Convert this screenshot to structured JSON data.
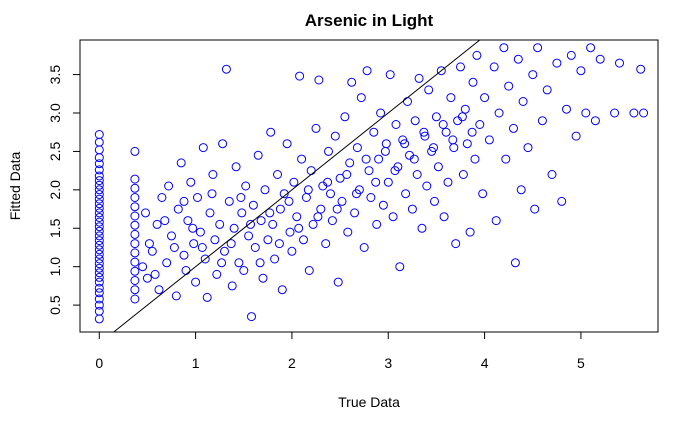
{
  "chart_data": {
    "type": "scatter",
    "title": "Arsenic in Light",
    "xlabel": "True Data",
    "ylabel": "Fitted Data",
    "xlim": [
      -0.2,
      5.8
    ],
    "ylim": [
      0.15,
      3.95
    ],
    "x_ticks": [
      0,
      1,
      2,
      3,
      4,
      5
    ],
    "y_ticks": [
      0.5,
      1.0,
      1.5,
      2.0,
      2.5,
      3.0,
      3.5
    ],
    "x_tick_labels": [
      "0",
      "1",
      "2",
      "3",
      "4",
      "5"
    ],
    "y_tick_labels": [
      "0.5",
      "1.0",
      "1.5",
      "2.0",
      "2.5",
      "3.0",
      "3.5"
    ],
    "grid": false,
    "marker": "open-circle",
    "point_color": "#0000ff",
    "reference_line": {
      "type": "identity",
      "slope": 1,
      "intercept": 0
    },
    "points": [
      [
        0,
        0.32
      ],
      [
        0,
        0.42
      ],
      [
        0,
        0.5
      ],
      [
        0,
        0.58
      ],
      [
        0,
        0.66
      ],
      [
        0,
        0.72
      ],
      [
        0,
        0.8
      ],
      [
        0,
        0.86
      ],
      [
        0,
        0.92
      ],
      [
        0,
        0.98
      ],
      [
        0,
        1.04
      ],
      [
        0,
        1.1
      ],
      [
        0,
        1.16
      ],
      [
        0,
        1.22
      ],
      [
        0,
        1.28
      ],
      [
        0,
        1.34
      ],
      [
        0,
        1.4
      ],
      [
        0,
        1.46
      ],
      [
        0,
        1.52
      ],
      [
        0,
        1.58
      ],
      [
        0,
        1.64
      ],
      [
        0,
        1.7
      ],
      [
        0,
        1.76
      ],
      [
        0,
        1.82
      ],
      [
        0,
        1.88
      ],
      [
        0,
        1.94
      ],
      [
        0,
        2.0
      ],
      [
        0,
        2.06
      ],
      [
        0,
        2.12
      ],
      [
        0,
        2.18
      ],
      [
        0,
        2.26
      ],
      [
        0,
        2.34
      ],
      [
        0,
        2.42
      ],
      [
        0,
        2.52
      ],
      [
        0,
        2.62
      ],
      [
        0,
        2.72
      ],
      [
        0.37,
        0.58
      ],
      [
        0.37,
        0.7
      ],
      [
        0.37,
        0.82
      ],
      [
        0.37,
        0.94
      ],
      [
        0.37,
        1.06
      ],
      [
        0.37,
        1.18
      ],
      [
        0.37,
        1.3
      ],
      [
        0.37,
        1.42
      ],
      [
        0.37,
        1.54
      ],
      [
        0.37,
        1.66
      ],
      [
        0.37,
        1.78
      ],
      [
        0.37,
        1.9
      ],
      [
        0.37,
        2.02
      ],
      [
        0.37,
        2.14
      ],
      [
        0.37,
        2.5
      ],
      [
        0.5,
        0.85
      ],
      [
        0.55,
        1.2
      ],
      [
        0.6,
        1.55
      ],
      [
        0.62,
        0.7
      ],
      [
        0.65,
        1.9
      ],
      [
        0.7,
        1.05
      ],
      [
        0.72,
        2.05
      ],
      [
        0.75,
        1.4
      ],
      [
        0.8,
        0.62
      ],
      [
        0.82,
        1.75
      ],
      [
        0.85,
        2.35
      ],
      [
        0.88,
        1.15
      ],
      [
        0.9,
        0.95
      ],
      [
        0.92,
        1.6
      ],
      [
        0.95,
        2.1
      ],
      [
        0.98,
        1.3
      ],
      [
        1.0,
        0.8
      ],
      [
        1.02,
        1.9
      ],
      [
        1.05,
        1.45
      ],
      [
        1.08,
        2.55
      ],
      [
        1.1,
        1.1
      ],
      [
        1.12,
        0.6
      ],
      [
        1.15,
        1.7
      ],
      [
        1.18,
        2.2
      ],
      [
        1.2,
        1.35
      ],
      [
        1.22,
        0.9
      ],
      [
        1.25,
        1.55
      ],
      [
        1.28,
        2.6
      ],
      [
        1.3,
        1.2
      ],
      [
        1.32,
        3.57
      ],
      [
        1.35,
        1.85
      ],
      [
        1.38,
        0.75
      ],
      [
        1.4,
        1.5
      ],
      [
        1.42,
        2.3
      ],
      [
        1.45,
        1.05
      ],
      [
        1.48,
        1.7
      ],
      [
        1.5,
        0.95
      ],
      [
        1.52,
        2.05
      ],
      [
        1.55,
        1.4
      ],
      [
        1.58,
        0.35
      ],
      [
        1.6,
        1.8
      ],
      [
        1.62,
        1.25
      ],
      [
        1.65,
        2.45
      ],
      [
        1.68,
        1.6
      ],
      [
        1.7,
        0.85
      ],
      [
        1.72,
        2.0
      ],
      [
        1.75,
        1.35
      ],
      [
        1.78,
        2.75
      ],
      [
        1.8,
        1.55
      ],
      [
        1.82,
        1.1
      ],
      [
        1.85,
        2.2
      ],
      [
        1.88,
        1.75
      ],
      [
        1.9,
        0.7
      ],
      [
        1.92,
        1.95
      ],
      [
        1.95,
        2.6
      ],
      [
        1.98,
        1.45
      ],
      [
        2.0,
        1.2
      ],
      [
        2.02,
        2.1
      ],
      [
        2.05,
        1.65
      ],
      [
        2.08,
        3.48
      ],
      [
        2.1,
        2.4
      ],
      [
        2.12,
        1.35
      ],
      [
        2.15,
        1.9
      ],
      [
        2.18,
        0.95
      ],
      [
        2.2,
        2.25
      ],
      [
        2.22,
        1.55
      ],
      [
        2.25,
        2.8
      ],
      [
        2.28,
        3.43
      ],
      [
        2.3,
        1.75
      ],
      [
        2.32,
        2.05
      ],
      [
        2.35,
        1.3
      ],
      [
        2.38,
        2.5
      ],
      [
        2.4,
        1.95
      ],
      [
        2.42,
        1.6
      ],
      [
        2.45,
        2.7
      ],
      [
        2.48,
        0.8
      ],
      [
        2.5,
        2.15
      ],
      [
        2.52,
        1.85
      ],
      [
        2.55,
        2.95
      ],
      [
        2.58,
        1.45
      ],
      [
        2.6,
        2.35
      ],
      [
        2.62,
        3.4
      ],
      [
        2.65,
        1.7
      ],
      [
        2.68,
        2.55
      ],
      [
        2.7,
        2.0
      ],
      [
        2.72,
        3.2
      ],
      [
        2.75,
        1.25
      ],
      [
        2.78,
        3.55
      ],
      [
        2.8,
        2.25
      ],
      [
        2.82,
        1.9
      ],
      [
        2.85,
        2.75
      ],
      [
        2.88,
        1.55
      ],
      [
        2.9,
        2.4
      ],
      [
        2.92,
        3.0
      ],
      [
        2.95,
        1.8
      ],
      [
        2.98,
        2.6
      ],
      [
        3.0,
        2.1
      ],
      [
        3.02,
        3.5
      ],
      [
        3.05,
        1.65
      ],
      [
        3.08,
        2.85
      ],
      [
        3.1,
        2.3
      ],
      [
        3.12,
        1.0
      ],
      [
        3.15,
        2.65
      ],
      [
        3.18,
        1.95
      ],
      [
        3.2,
        3.15
      ],
      [
        3.22,
        2.45
      ],
      [
        3.25,
        1.75
      ],
      [
        3.28,
        2.9
      ],
      [
        3.3,
        2.2
      ],
      [
        3.32,
        3.45
      ],
      [
        3.35,
        1.5
      ],
      [
        3.38,
        2.7
      ],
      [
        3.4,
        2.05
      ],
      [
        3.42,
        3.3
      ],
      [
        3.45,
        2.5
      ],
      [
        3.48,
        1.85
      ],
      [
        3.5,
        2.95
      ],
      [
        3.52,
        2.3
      ],
      [
        3.55,
        3.55
      ],
      [
        3.58,
        1.65
      ],
      [
        3.6,
        2.75
      ],
      [
        3.62,
        2.1
      ],
      [
        3.65,
        3.2
      ],
      [
        3.68,
        2.55
      ],
      [
        3.7,
        1.3
      ],
      [
        3.72,
        2.9
      ],
      [
        3.75,
        3.6
      ],
      [
        3.78,
        2.2
      ],
      [
        3.8,
        3.05
      ],
      [
        3.82,
        2.6
      ],
      [
        3.85,
        1.45
      ],
      [
        3.88,
        3.4
      ],
      [
        3.9,
        2.4
      ],
      [
        3.92,
        3.75
      ],
      [
        3.95,
        2.85
      ],
      [
        3.98,
        1.95
      ],
      [
        4.0,
        3.2
      ],
      [
        4.05,
        2.65
      ],
      [
        4.1,
        3.6
      ],
      [
        4.12,
        1.6
      ],
      [
        4.15,
        3.0
      ],
      [
        4.2,
        3.85
      ],
      [
        4.22,
        2.4
      ],
      [
        4.25,
        3.35
      ],
      [
        4.3,
        2.8
      ],
      [
        4.32,
        1.05
      ],
      [
        4.35,
        3.7
      ],
      [
        4.38,
        2.0
      ],
      [
        4.4,
        3.15
      ],
      [
        4.45,
        2.55
      ],
      [
        4.5,
        3.5
      ],
      [
        4.52,
        1.75
      ],
      [
        4.55,
        3.85
      ],
      [
        4.6,
        2.9
      ],
      [
        4.65,
        3.3
      ],
      [
        4.7,
        2.2
      ],
      [
        4.75,
        3.65
      ],
      [
        4.8,
        1.85
      ],
      [
        4.85,
        3.05
      ],
      [
        4.9,
        3.75
      ],
      [
        4.95,
        2.7
      ],
      [
        5.0,
        3.55
      ],
      [
        5.05,
        3.0
      ],
      [
        5.1,
        3.85
      ],
      [
        5.15,
        2.9
      ],
      [
        5.2,
        3.7
      ],
      [
        5.35,
        3.0
      ],
      [
        5.4,
        3.65
      ],
      [
        5.55,
        3.0
      ],
      [
        5.62,
        3.57
      ],
      [
        5.65,
        3.0
      ],
      [
        0.45,
        1.0
      ],
      [
        0.48,
        1.7
      ],
      [
        0.52,
        1.3
      ],
      [
        0.58,
        0.9
      ],
      [
        0.68,
        1.6
      ],
      [
        0.78,
        1.25
      ],
      [
        0.88,
        1.85
      ],
      [
        0.97,
        1.5
      ],
      [
        1.07,
        1.25
      ],
      [
        1.17,
        1.95
      ],
      [
        1.27,
        1.05
      ],
      [
        1.37,
        1.3
      ],
      [
        1.47,
        1.9
      ],
      [
        1.57,
        1.55
      ],
      [
        1.67,
        1.05
      ],
      [
        1.77,
        1.7
      ],
      [
        1.87,
        1.3
      ],
      [
        1.97,
        1.85
      ],
      [
        2.07,
        1.5
      ],
      [
        2.17,
        2.0
      ],
      [
        2.27,
        1.65
      ],
      [
        2.37,
        2.1
      ],
      [
        2.47,
        1.75
      ],
      [
        2.57,
        2.2
      ],
      [
        2.67,
        1.95
      ],
      [
        2.77,
        2.4
      ],
      [
        2.87,
        2.1
      ],
      [
        2.97,
        2.5
      ],
      [
        3.07,
        2.25
      ],
      [
        3.17,
        2.6
      ],
      [
        3.27,
        2.4
      ],
      [
        3.37,
        2.75
      ],
      [
        3.47,
        2.55
      ],
      [
        3.57,
        2.85
      ],
      [
        3.67,
        2.65
      ],
      [
        3.77,
        2.95
      ],
      [
        3.87,
        2.75
      ]
    ]
  }
}
